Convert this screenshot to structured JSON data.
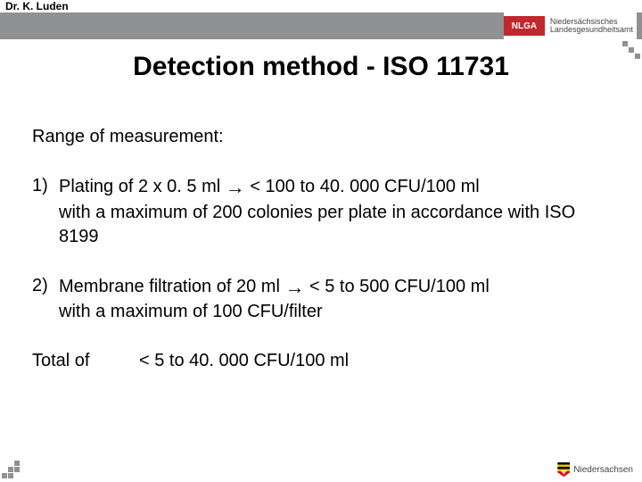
{
  "header": {
    "author": "Dr. K. Luden",
    "logo_acronym": "NLGA",
    "logo_line1": "Niedersächsisches",
    "logo_line2": "Landesgesundheitsamt",
    "bar_color": "#8f9192",
    "logo_bg_color": "#c1272d"
  },
  "title": "Detection method - ISO 11731",
  "body": {
    "range_label": "Range of measurement:",
    "items": [
      {
        "num": "1)",
        "line1_pre": "Plating of 2 x 0. 5 ml ",
        "arrow": "→",
        "line1_post": " < 100 to 40. 000 CFU/100 ml",
        "line2": "with a maximum of 200 colonies per plate in accordance with ISO 8199"
      },
      {
        "num": "2)",
        "line1_pre": "Membrane filtration of 20 ml ",
        "arrow": "→",
        "line1_post": " < 5 to 500 CFU/100 ml",
        "line2": "with a maximum of 100 CFU/filter"
      }
    ],
    "total_label": "Total of",
    "total_value": "< 5 to 40. 000 CFU/100 ml",
    "font_size_pt": 20,
    "text_color": "#000000"
  },
  "footer": {
    "region": "Niedersachsen"
  }
}
